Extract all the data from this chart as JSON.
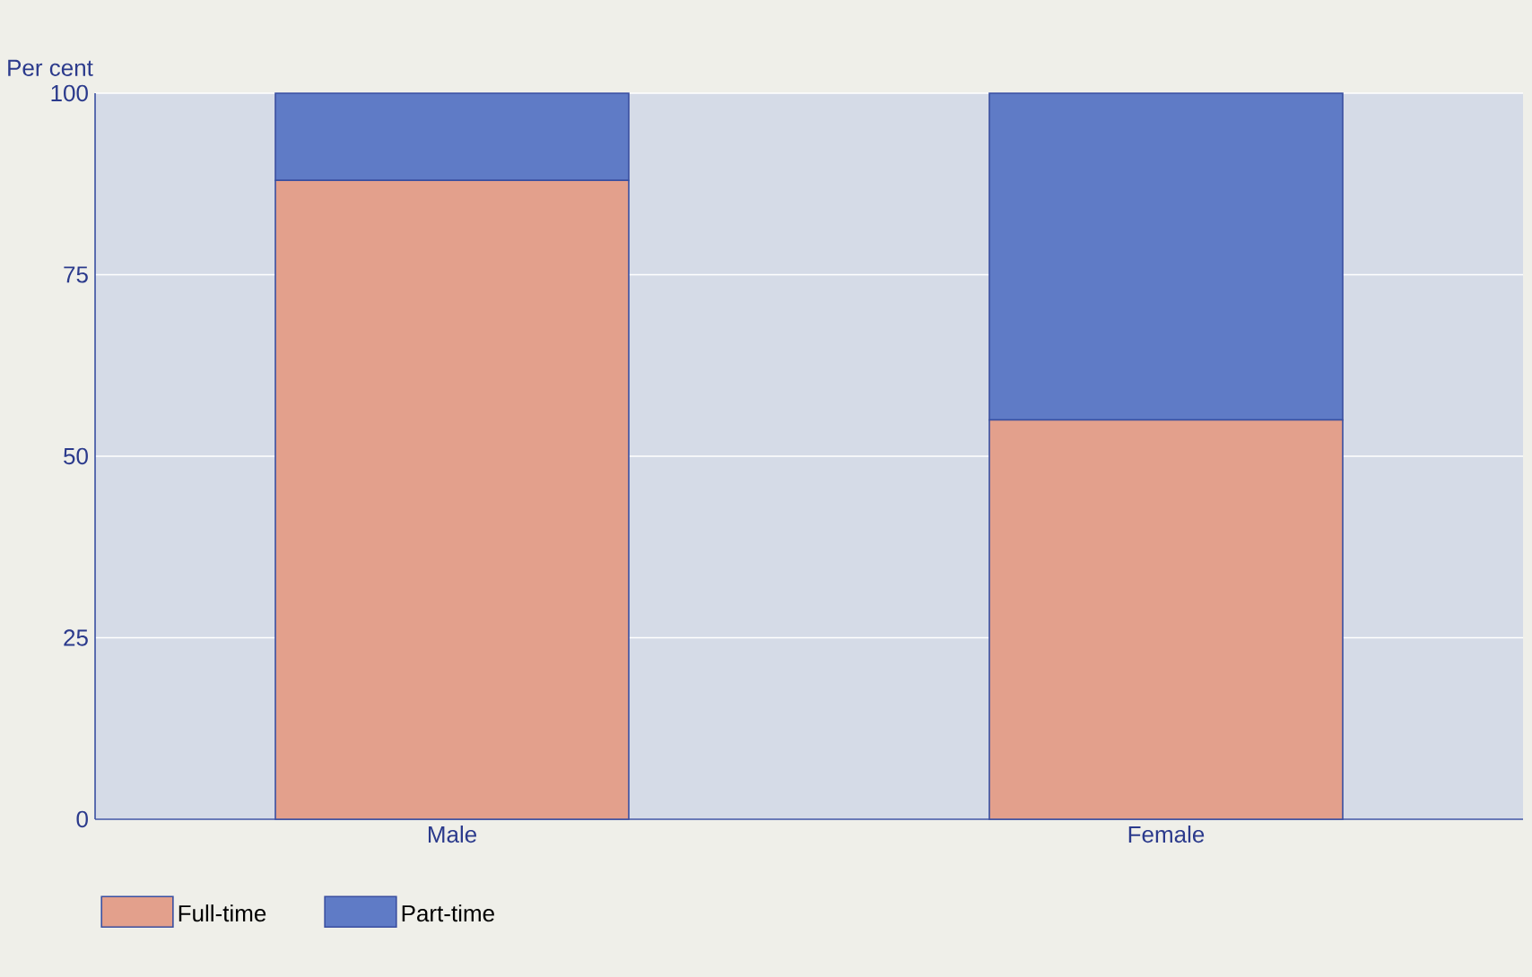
{
  "chart_data": {
    "type": "bar",
    "stacked": true,
    "ylabel": "Per cent",
    "categories": [
      "Male",
      "Female"
    ],
    "series": [
      {
        "name": "Full-time",
        "color": "#e3a08c",
        "values": [
          88,
          55
        ]
      },
      {
        "name": "Part-time",
        "color": "#5f7bc6",
        "values": [
          12,
          45
        ]
      }
    ],
    "ylim": [
      0,
      100
    ],
    "yticks": [
      0,
      25,
      50,
      75,
      100
    ],
    "grid": "y",
    "legend": "bottom left"
  }
}
